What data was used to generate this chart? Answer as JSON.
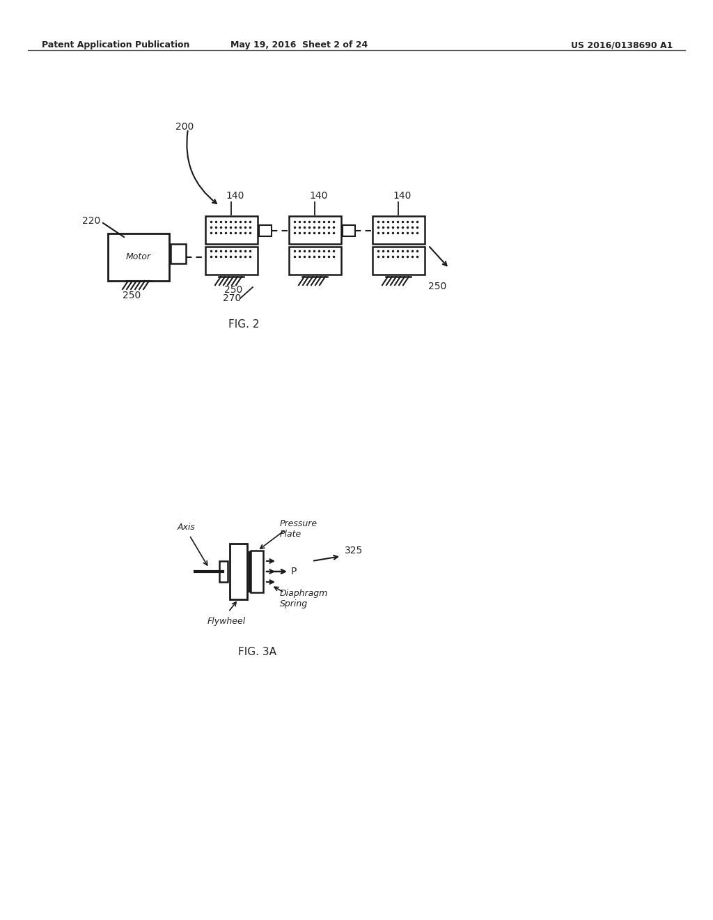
{
  "bg_color": "#ffffff",
  "header_left": "Patent Application Publication",
  "header_middle": "May 19, 2016  Sheet 2 of 24",
  "header_right": "US 2016/0138690 A1",
  "fig2_caption": "FIG. 2",
  "fig3a_caption": "FIG. 3A",
  "label_200": "200",
  "label_220": "220",
  "label_140a": "140",
  "label_140b": "140",
  "label_140c": "140",
  "label_250a": "250",
  "label_250b": "250",
  "label_250c": "250",
  "label_270": "270",
  "label_325": "325",
  "label_axis": "Axis",
  "label_pressure_plate": "Pressure\nPlate",
  "label_p": "P",
  "label_diaphragm_spring": "Diaphragm\nSpring",
  "label_flywheel": "Flywheel"
}
